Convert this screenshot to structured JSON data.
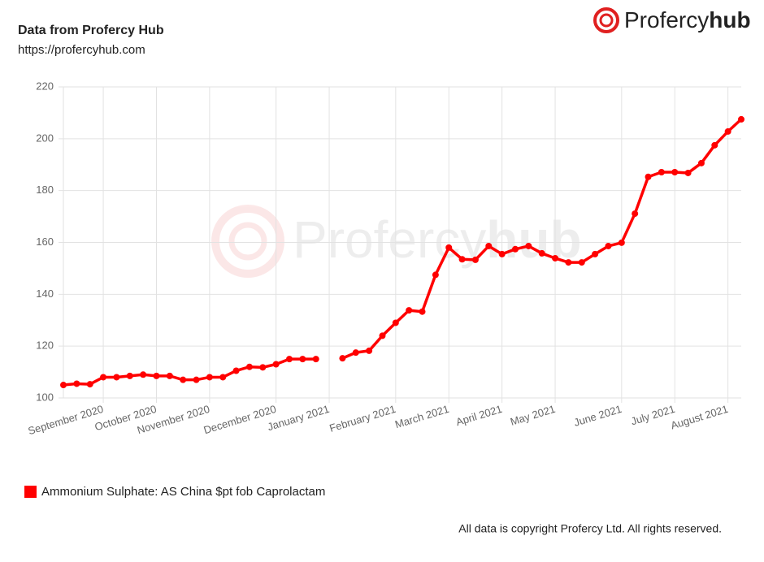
{
  "header": {
    "title": "Data from Profercy Hub",
    "url": "https://profercyhub.com",
    "logo_main": "Profercy",
    "logo_bold": "hub"
  },
  "footer": "All data is copyright Profercy Ltd. All rights reserved.",
  "chart_data": {
    "type": "line",
    "categories": [
      null,
      null,
      null,
      "September 2020",
      null,
      null,
      null,
      "October 2020",
      null,
      null,
      null,
      "November 2020",
      null,
      null,
      null,
      null,
      "December 2020",
      null,
      null,
      null,
      "January 2021",
      null,
      null,
      null,
      null,
      "February 2021",
      null,
      null,
      null,
      "March 2021",
      null,
      null,
      null,
      "April 2021",
      null,
      null,
      null,
      "May 2021",
      null,
      null,
      null,
      null,
      "June 2021",
      null,
      null,
      null,
      "July 2021",
      null,
      null,
      null,
      "August 2021",
      null
    ],
    "series": [
      {
        "name": "Ammonium Sulphate: AS China $pt fob Caprolactam",
        "color": "#ff0000",
        "values": [
          105,
          105.5,
          105.3,
          108,
          108,
          108.5,
          109,
          108.5,
          108.5,
          107,
          107,
          108,
          108,
          110.5,
          112,
          111.8,
          113,
          115,
          115,
          115,
          null,
          115.3,
          117.5,
          118.2,
          124,
          129,
          133.8,
          133.3,
          147.5,
          158,
          153.5,
          153.3,
          158.6,
          155.5,
          157.4,
          158.6,
          155.8,
          153.9,
          152.3,
          152.3,
          155.5,
          158.6,
          159.9,
          171.1,
          185.3,
          187.1,
          187.1,
          186.8,
          190.6,
          197.5,
          202.8,
          207.5
        ]
      }
    ],
    "ylim": [
      100,
      220
    ],
    "yticks": [
      100,
      120,
      140,
      160,
      180,
      200,
      220
    ],
    "grid": true,
    "legend": "bottom-left"
  }
}
